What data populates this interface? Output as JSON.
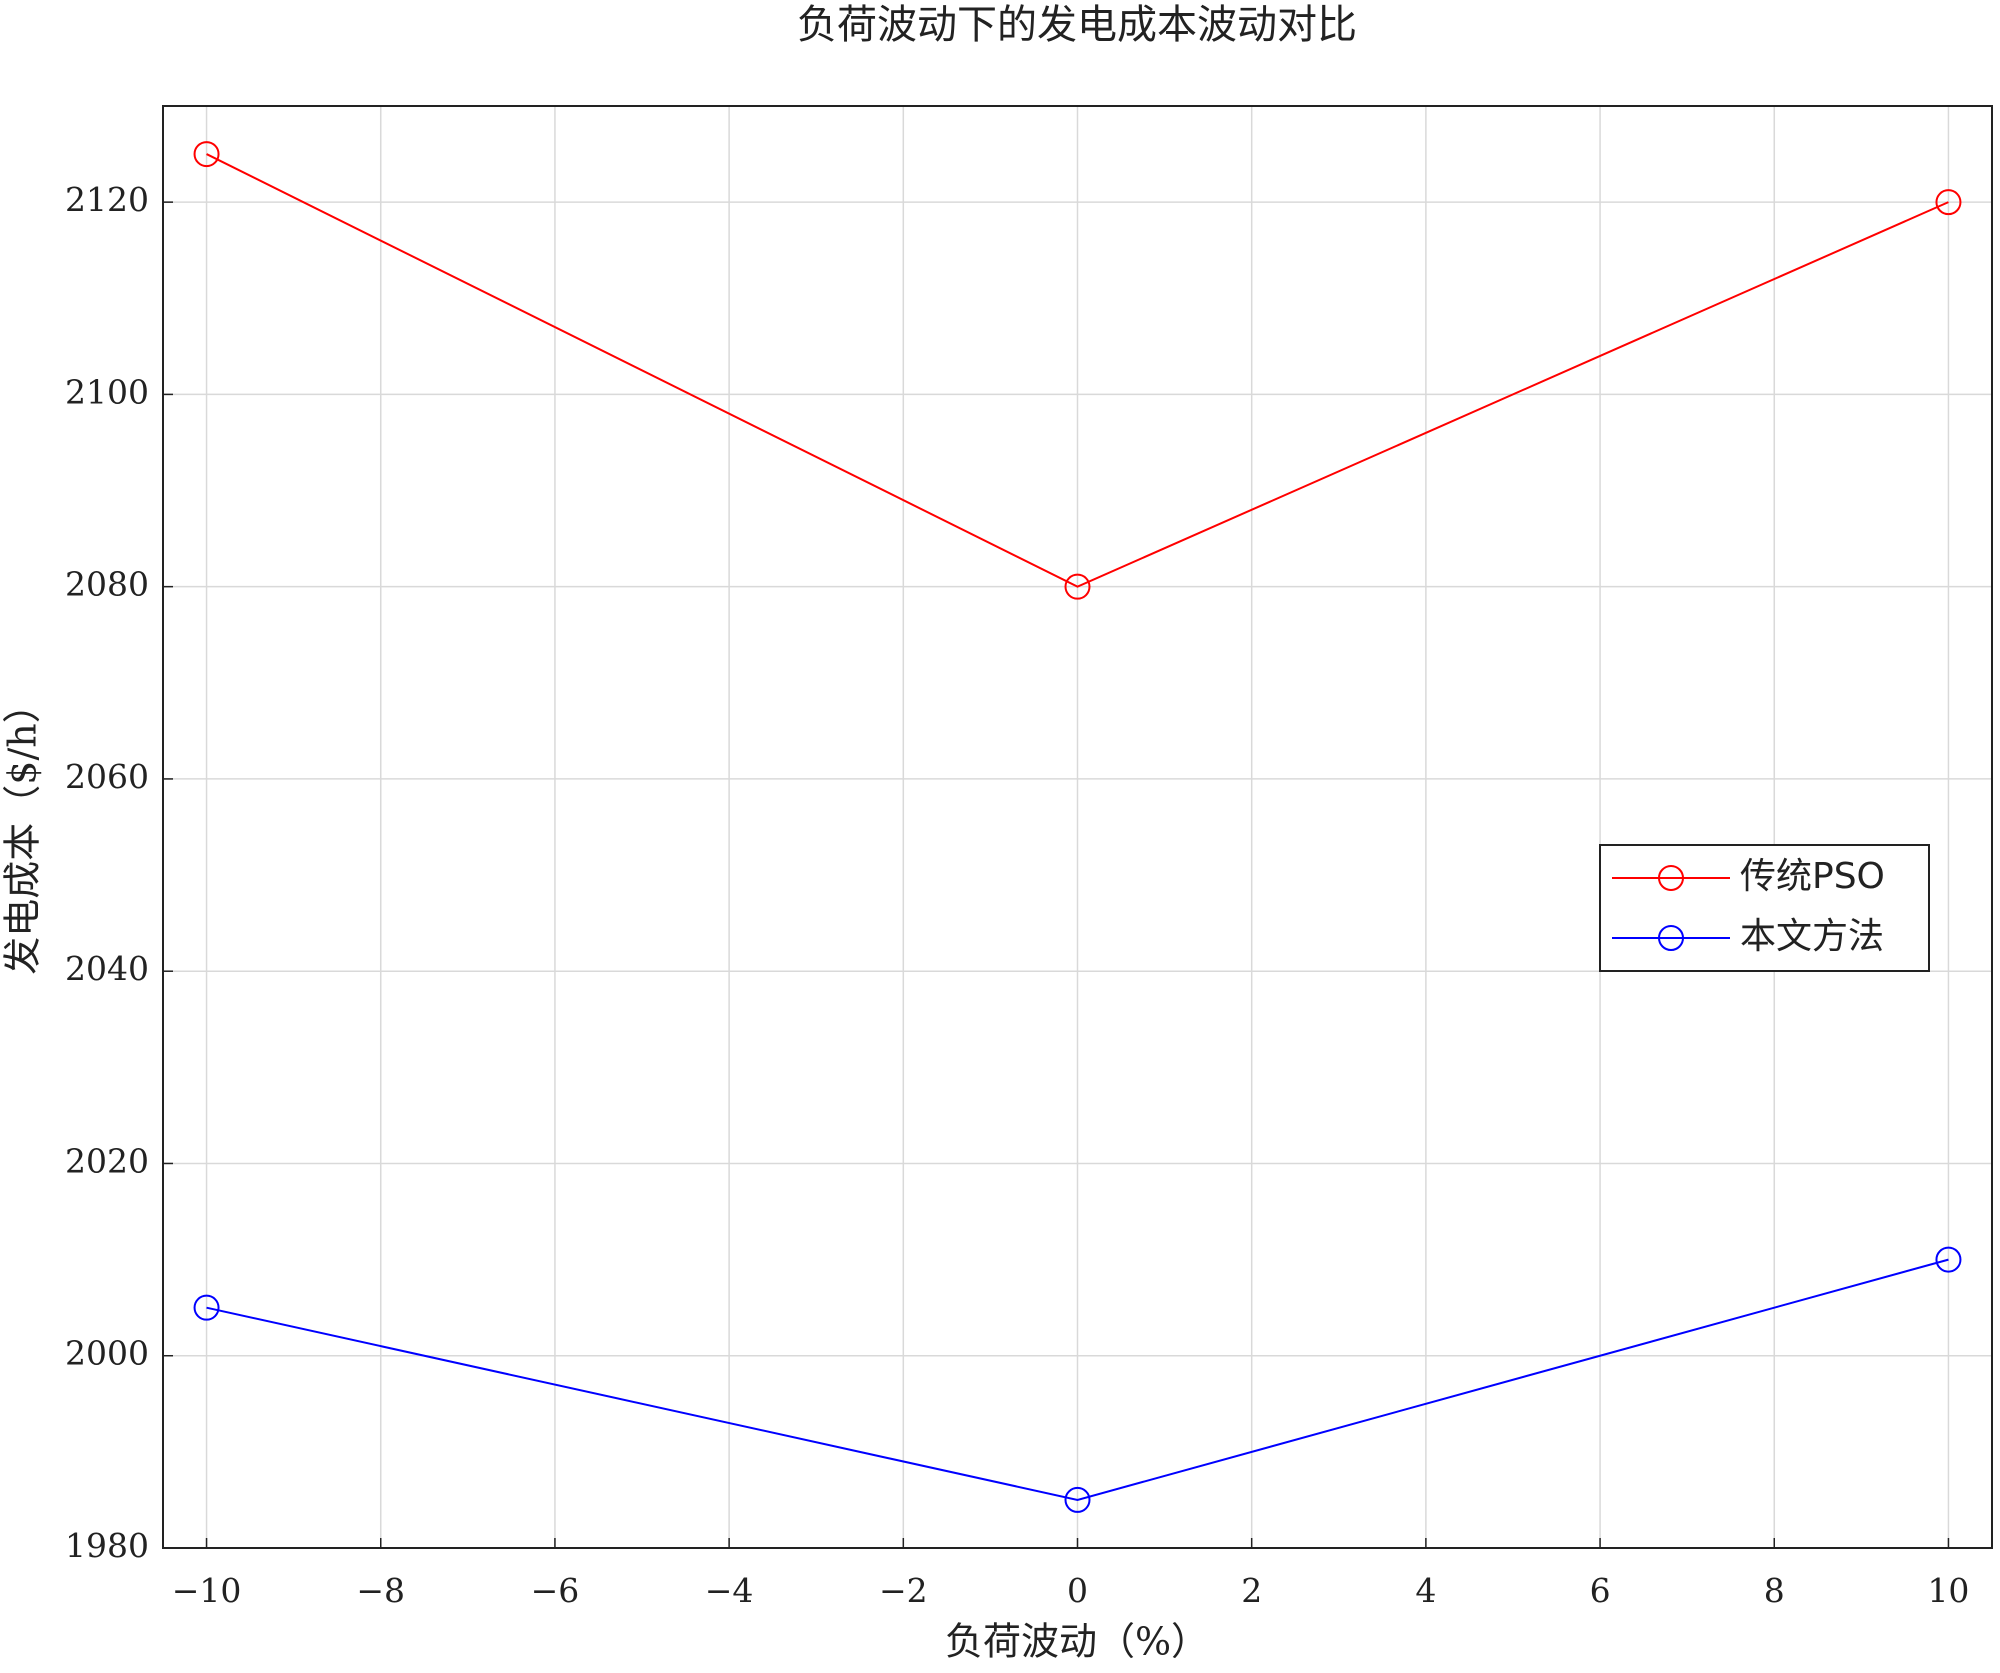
{
  "chart_data": {
    "type": "line",
    "title": "负荷波动下的发电成本波动对比",
    "x_label": "负荷波动（%）",
    "y_label": "发电成本（$/h）",
    "x": [
      -10,
      0,
      10
    ],
    "series": [
      {
        "name": "传统PSO",
        "color": "#ff0000",
        "values": [
          2125,
          2080,
          2120
        ]
      },
      {
        "name": "本文方法",
        "color": "#0000ff",
        "values": [
          2005,
          1985,
          2010
        ]
      }
    ],
    "xlim": [
      -10.5,
      10.5
    ],
    "xticks": [
      {
        "value": -10,
        "label": "−10"
      },
      {
        "value": -8,
        "label": "−8"
      },
      {
        "value": -6,
        "label": "−6"
      },
      {
        "value": -4,
        "label": "−4"
      },
      {
        "value": -2,
        "label": "−2"
      },
      0,
      2,
      4,
      6,
      8,
      10
    ],
    "ylim": [
      1980,
      2130
    ],
    "yticks": [
      1980,
      2000,
      2020,
      2040,
      2060,
      2080,
      2100,
      2120
    ],
    "grid": true,
    "legend": "right",
    "marker": "circle"
  }
}
